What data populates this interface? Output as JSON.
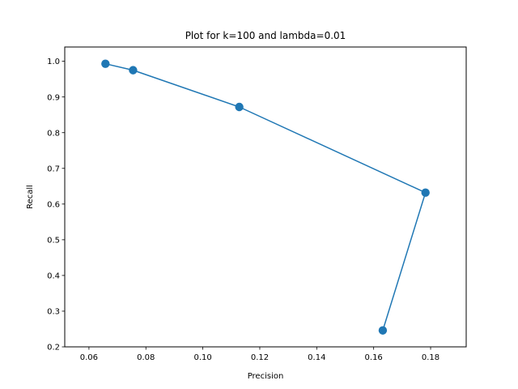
{
  "chart_data": {
    "type": "line",
    "title": "Plot for k=100 and lambda=0.01",
    "xlabel": "Precision",
    "ylabel": "Recall",
    "xlim": [
      0.0515,
      0.1925
    ],
    "ylim": [
      0.2,
      1.04
    ],
    "xticks": [
      0.06,
      0.08,
      0.1,
      0.12,
      0.14,
      0.16,
      0.18
    ],
    "xtick_labels": [
      "0.06",
      "0.08",
      "0.10",
      "0.12",
      "0.14",
      "0.16",
      "0.18"
    ],
    "yticks": [
      0.2,
      0.3,
      0.4,
      0.5,
      0.6,
      0.7,
      0.8,
      0.9,
      1.0
    ],
    "ytick_labels": [
      "0.2",
      "0.3",
      "0.4",
      "0.5",
      "0.6",
      "0.7",
      "0.8",
      "0.9",
      "1.0"
    ],
    "grid": false,
    "legend": "none",
    "colors": {
      "series": "#1f77b4",
      "axes": "#000000",
      "background": "#ffffff"
    },
    "series": [
      {
        "x": [
          0.0658,
          0.0755,
          0.1128,
          0.1782,
          0.1632
        ],
        "y": [
          0.993,
          0.975,
          0.872,
          0.632,
          0.246
        ],
        "marker": "circle"
      }
    ]
  }
}
